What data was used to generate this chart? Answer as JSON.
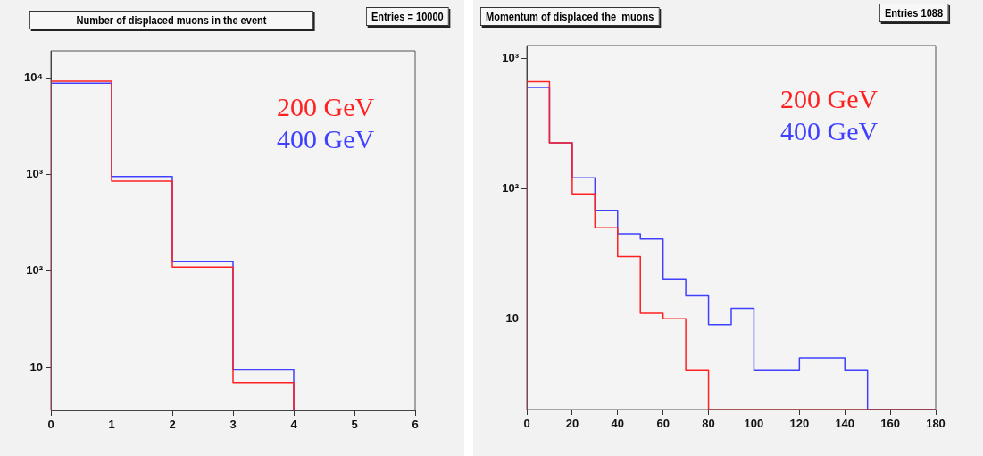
{
  "chart_data": [
    {
      "type": "histogram",
      "title": "Number of displaced muons in the event",
      "annotations": [
        "Entries = 10000"
      ],
      "bins": [
        0,
        1,
        2,
        3,
        4,
        5,
        6
      ],
      "series": [
        {
          "name": "200 GeV",
          "color": "#ff2020",
          "values": [
            9200,
            850,
            110,
            7,
            null,
            null
          ]
        },
        {
          "name": "400 GeV",
          "color": "#4040ff",
          "values": [
            8800,
            950,
            125,
            9.5,
            null,
            null
          ]
        }
      ],
      "xlim": [
        0,
        6
      ],
      "xticks": [
        0,
        1,
        2,
        3,
        4,
        5,
        6
      ],
      "ylim": [
        3.6,
        19000
      ],
      "yticks": [
        {
          "value": 10,
          "label": "10"
        },
        {
          "value": 100,
          "label": "10²"
        },
        {
          "value": 1000,
          "label": "10³"
        },
        {
          "value": 10000,
          "label": "10⁴"
        }
      ],
      "log": "y",
      "grid": false,
      "legend": "right"
    },
    {
      "type": "histogram",
      "title": "Momentum of displaced the  muons",
      "annotations": [
        "Entries 1088"
      ],
      "bins": [
        0,
        10,
        20,
        30,
        40,
        50,
        60,
        70,
        80,
        90,
        100,
        110,
        120,
        130,
        140,
        150,
        160,
        170,
        180
      ],
      "series": [
        {
          "name": "200 GeV",
          "color": "#ff2020",
          "values": [
            665,
            225,
            91,
            50,
            30,
            11,
            10,
            4,
            null,
            null,
            null,
            null,
            null,
            null,
            null,
            null,
            null,
            null
          ]
        },
        {
          "name": "400 GeV",
          "color": "#4040ff",
          "values": [
            600,
            225,
            121,
            68,
            45,
            41,
            20,
            15,
            9,
            12,
            4,
            4,
            5,
            5,
            4,
            null,
            null,
            null
          ]
        }
      ],
      "xlim": [
        0,
        180
      ],
      "xticks": [
        0,
        20,
        40,
        60,
        80,
        100,
        120,
        140,
        160,
        180
      ],
      "ylim": [
        2,
        1260
      ],
      "yticks": [
        {
          "value": 10,
          "label": "10"
        },
        {
          "value": 100,
          "label": "10²"
        },
        {
          "value": 1000,
          "label": "10³"
        }
      ],
      "log": "y",
      "grid": false,
      "legend": "top right"
    }
  ]
}
